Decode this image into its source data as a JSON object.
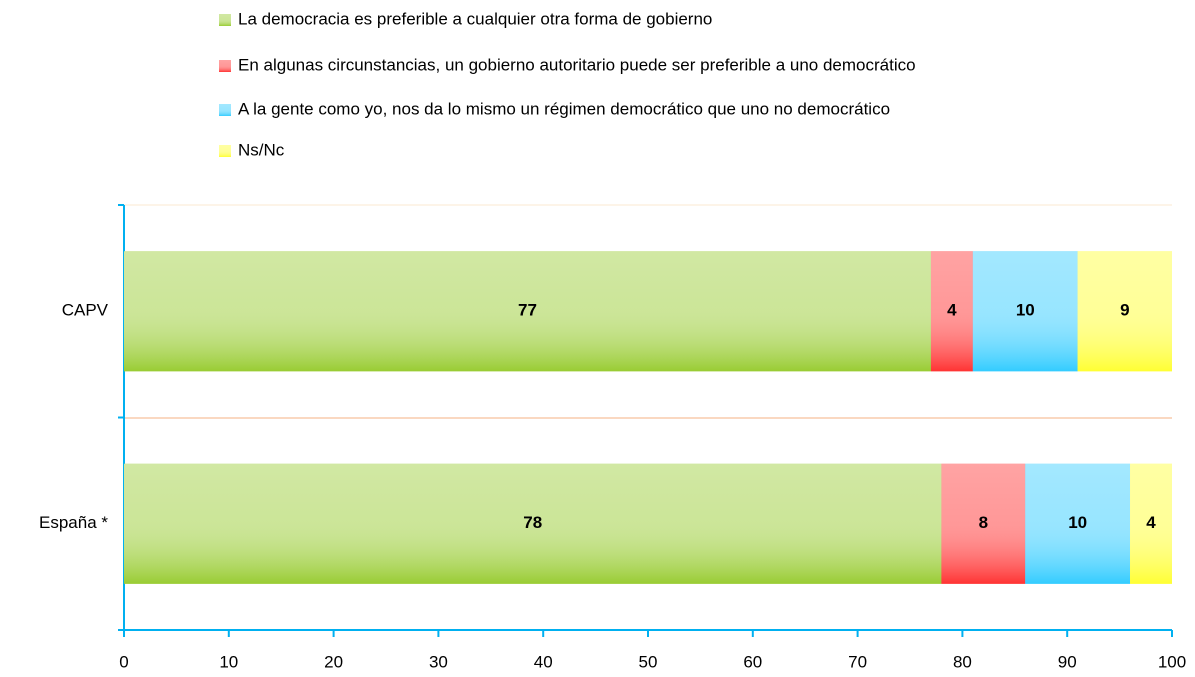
{
  "chart_data": {
    "type": "stacked_bar_horizontal",
    "categories": [
      "CAPV",
      "España *"
    ],
    "series": [
      {
        "name": "La democracia es preferible a cualquier otra forma de gobierno",
        "color": "#99cc33",
        "values": [
          77,
          78
        ]
      },
      {
        "name": "En algunas circunstancias, un gobierno autoritario puede ser preferible a uno democrático",
        "color": "#ff3333",
        "values": [
          4,
          8
        ]
      },
      {
        "name": "A la gente como yo, nos da lo mismo un régimen democrático que uno no democrático",
        "color": "#33ccff",
        "values": [
          10,
          10
        ]
      },
      {
        "name": "Ns/Nc",
        "color": "#ffff33",
        "values": [
          9,
          4
        ]
      }
    ],
    "xlim": [
      0,
      100
    ],
    "xticks": [
      0,
      10,
      20,
      30,
      40,
      50,
      60,
      70,
      80,
      90,
      100
    ],
    "legend": "top"
  }
}
